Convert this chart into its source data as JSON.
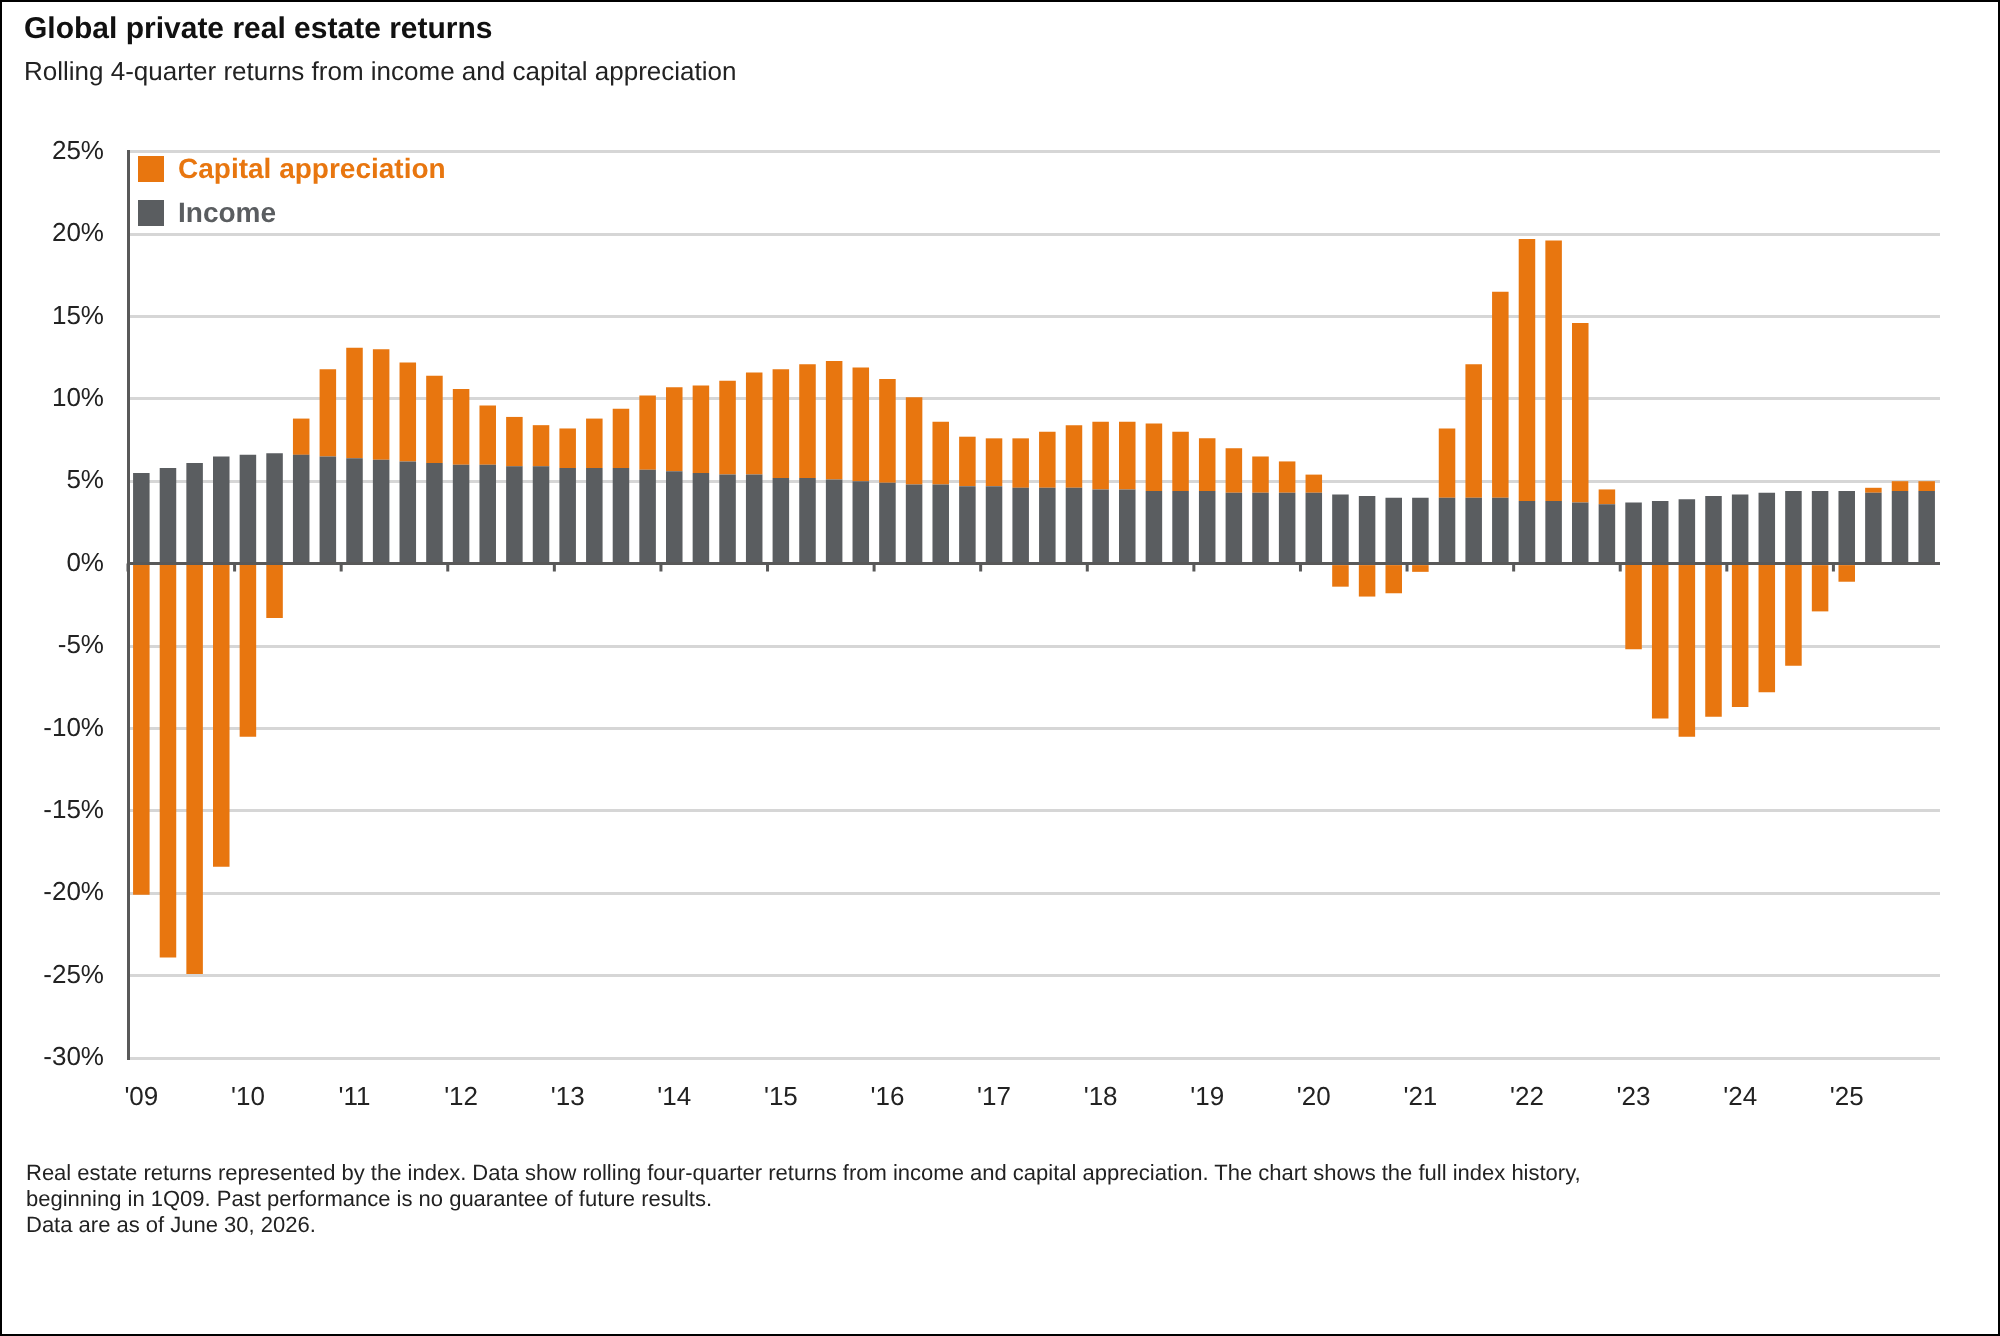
{
  "chart_data": {
    "type": "bar",
    "title": "Global private real estate returns",
    "subtitle": "Rolling 4-quarter returns from income and capital appreciation",
    "categories": [
      "'09",
      null,
      null,
      null,
      "'10",
      null,
      null,
      null,
      "'11",
      null,
      null,
      null,
      "'12",
      null,
      null,
      null,
      "'13",
      null,
      null,
      null,
      "'14",
      null,
      null,
      null,
      "'15",
      null,
      null,
      null,
      "'16",
      null,
      null,
      null,
      "'17",
      null,
      null,
      null,
      "'18",
      null,
      null,
      null,
      "'19",
      null,
      null,
      null,
      "'20",
      null,
      null,
      null,
      "'21",
      null,
      null,
      null,
      "'22",
      null,
      null,
      null,
      "'23",
      null,
      null,
      null,
      "'24",
      null,
      null,
      null,
      "'25",
      null,
      null,
      null
    ],
    "series": [
      {
        "name": "Income",
        "color": "#5a5d60",
        "values": [
          5.5,
          5.8,
          6.1,
          6.5,
          6.6,
          6.7,
          6.6,
          6.5,
          6.4,
          6.3,
          6.2,
          6.1,
          6.0,
          6.0,
          5.9,
          5.9,
          5.8,
          5.8,
          5.8,
          5.7,
          5.6,
          5.5,
          5.4,
          5.4,
          5.2,
          5.2,
          5.1,
          5.0,
          4.9,
          4.8,
          4.8,
          4.7,
          4.7,
          4.6,
          4.6,
          4.6,
          4.5,
          4.5,
          4.4,
          4.4,
          4.4,
          4.3,
          4.3,
          4.3,
          4.3,
          4.2,
          4.1,
          4.0,
          4.0,
          4.0,
          4.0,
          4.0,
          3.8,
          3.8,
          3.7,
          3.6,
          3.7,
          3.8,
          3.9,
          4.1,
          4.2,
          4.3,
          4.4,
          4.4,
          4.4,
          4.3,
          4.4,
          4.4
        ]
      },
      {
        "name": "Capital appreciation",
        "color": "#e8760f",
        "values": [
          -20.1,
          -23.9,
          -24.9,
          -18.4,
          -10.5,
          -3.3,
          2.2,
          5.3,
          6.7,
          6.7,
          6.0,
          5.3,
          4.6,
          3.6,
          3.0,
          2.5,
          2.4,
          3.0,
          3.6,
          4.5,
          5.1,
          5.3,
          5.7,
          6.2,
          6.6,
          6.9,
          7.2,
          6.9,
          6.3,
          5.3,
          3.8,
          3.0,
          2.9,
          3.0,
          3.4,
          3.8,
          4.1,
          4.1,
          4.1,
          3.6,
          3.2,
          2.7,
          2.2,
          1.9,
          1.1,
          -1.4,
          -2.0,
          -1.8,
          -0.5,
          4.2,
          8.1,
          12.5,
          15.9,
          15.8,
          10.9,
          0.9,
          -5.2,
          -9.4,
          -10.5,
          -9.3,
          -8.7,
          -7.8,
          -6.2,
          -2.9,
          -1.1,
          0.3,
          0.6,
          0.6
        ]
      }
    ],
    "stacked": true,
    "ylim": [
      -30,
      25
    ],
    "yticks": [
      {
        "value": -30,
        "label": "-30%"
      },
      {
        "value": -25,
        "label": "-25%"
      },
      {
        "value": -20,
        "label": "-20%"
      },
      {
        "value": -15,
        "label": "-15%"
      },
      {
        "value": -10,
        "label": "-10%"
      },
      {
        "value": -5,
        "label": "-5%"
      },
      {
        "value": 0,
        "label": "0%"
      },
      {
        "value": 5,
        "label": "5%"
      },
      {
        "value": 10,
        "label": "10%"
      },
      {
        "value": 15,
        "label": "15%"
      },
      {
        "value": 20,
        "label": "20%"
      },
      {
        "value": 25,
        "label": "25%"
      }
    ],
    "grid": "y",
    "legend": "top left",
    "annotations": [
      "Real estate returns represented by the index. Data show rolling four-quarter returns from income and capital appreciation. The chart shows the full index history, beginning in 1Q09. Past performance is no guarantee of future results.",
      "Data are as of June 30, 2026."
    ]
  }
}
